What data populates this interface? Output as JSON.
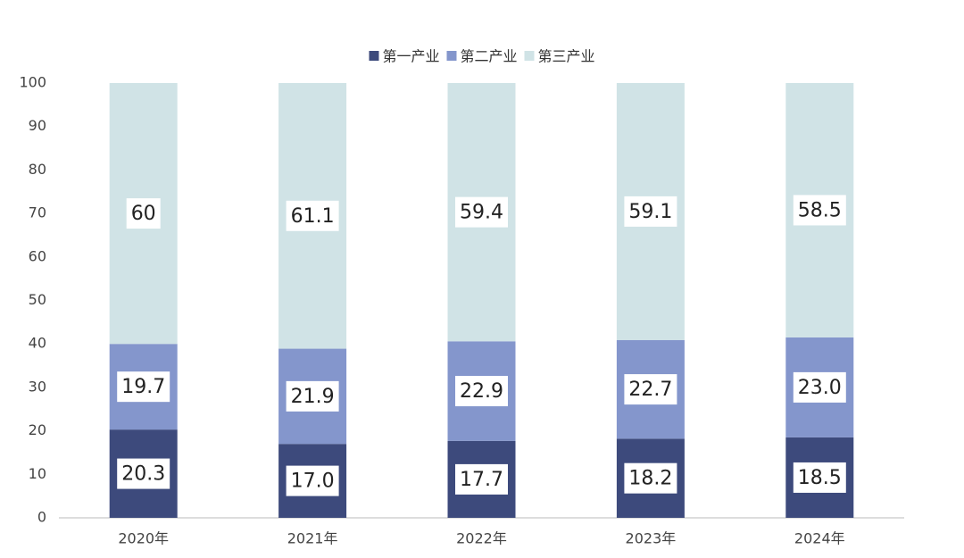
{
  "chart_data": {
    "type": "stacked-bar",
    "categories": [
      "2020年",
      "2021年",
      "2022年",
      "2023年",
      "2024年"
    ],
    "series": [
      {
        "name": "第一产业",
        "color": "#3d4a7c",
        "values": [
          20.3,
          17.0,
          17.7,
          18.2,
          18.5
        ],
        "value_labels": [
          "20.3",
          "17.0",
          "17.7",
          "18.2",
          "18.5"
        ]
      },
      {
        "name": "第二产业",
        "color": "#8496cc",
        "values": [
          19.7,
          21.9,
          22.9,
          22.7,
          23.0
        ],
        "value_labels": [
          "19.7",
          "21.9",
          "22.9",
          "22.7",
          "23.0"
        ]
      },
      {
        "name": "第三产业",
        "color": "#d0e3e6",
        "values": [
          60,
          61.1,
          59.4,
          59.1,
          58.5
        ],
        "value_labels": [
          "60",
          "61.1",
          "59.4",
          "59.1",
          "58.5"
        ]
      }
    ],
    "ylim": [
      0,
      100
    ],
    "yticks": [
      0,
      10,
      20,
      30,
      40,
      50,
      60,
      70,
      80,
      90,
      100
    ],
    "legend": "top",
    "grid": false
  }
}
